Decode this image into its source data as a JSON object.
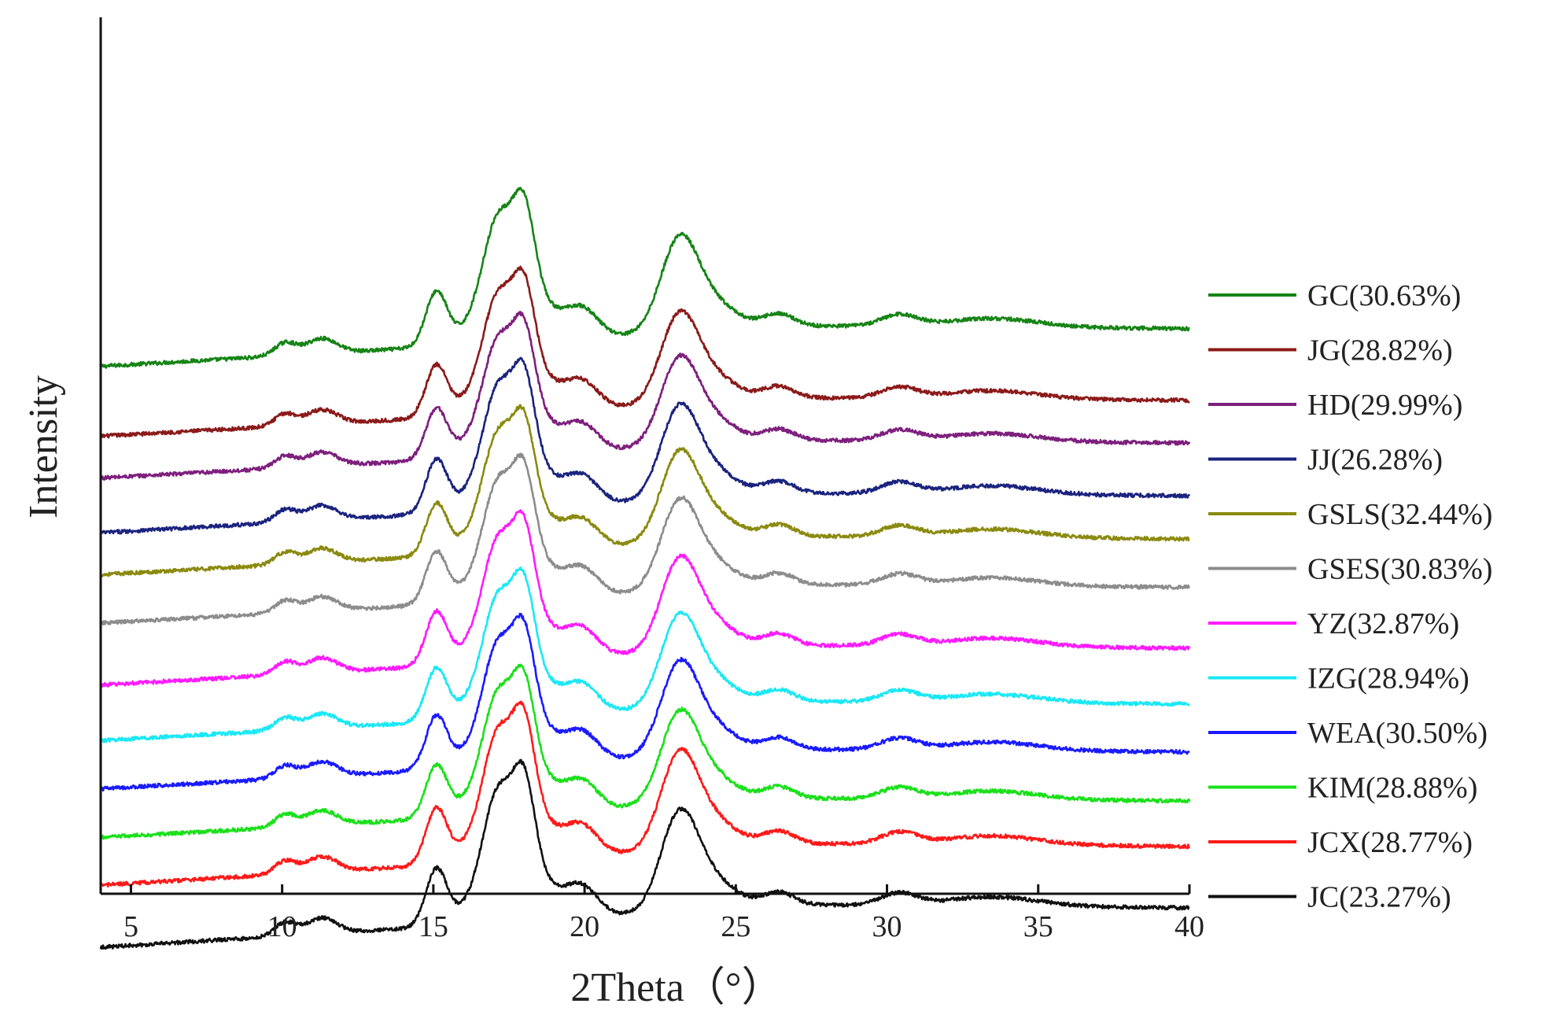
{
  "chart_data": {
    "type": "line",
    "title": "",
    "xlabel": "2Theta（°）",
    "ylabel": "Intensity",
    "xlim": [
      4,
      40
    ],
    "xticks": [
      5,
      10,
      15,
      20,
      25,
      30,
      35,
      40
    ],
    "y_ticks_shown": false,
    "legend_position": "right",
    "series": [
      {
        "name": "GC(30.63%)",
        "color": "#168416",
        "baseline": 0.68,
        "peak_scale": 1.0
      },
      {
        "name": "JG(28.82%)",
        "color": "#8b1a1a",
        "baseline": 0.58,
        "peak_scale": 0.95
      },
      {
        "name": "HD(29.99%)",
        "color": "#7d1f7d",
        "baseline": 0.52,
        "peak_scale": 0.93
      },
      {
        "name": "JJ(26.28%)",
        "color": "#1a237e",
        "baseline": 0.44,
        "peak_scale": 0.98
      },
      {
        "name": "GSLS(32.44%)",
        "color": "#8a8a10",
        "baseline": 0.38,
        "peak_scale": 0.95
      },
      {
        "name": "GSES(30.83%)",
        "color": "#8c8c8c",
        "baseline": 0.31,
        "peak_scale": 0.95
      },
      {
        "name": "YZ(32.87%)",
        "color": "#ff1aff",
        "baseline": 0.22,
        "peak_scale": 0.98
      },
      {
        "name": "IZG(28.94%)",
        "color": "#1ae8f5",
        "baseline": 0.14,
        "peak_scale": 0.97
      },
      {
        "name": "WEA(30.50%)",
        "color": "#1a1aff",
        "baseline": 0.07,
        "peak_scale": 0.98
      },
      {
        "name": "KIM(28.88%)",
        "color": "#1ae01a",
        "baseline": 0.0,
        "peak_scale": 0.97
      },
      {
        "name": "JCX(28.77%)",
        "color": "#ff1a1a",
        "baseline": -0.07,
        "peak_scale": 1.03
      },
      {
        "name": "JC(23.27%)",
        "color": "#111111",
        "baseline": -0.16,
        "peak_scale": 1.05
      }
    ],
    "peaks_2theta": [
      15.1,
      17.1,
      18.0,
      23.1
    ]
  }
}
